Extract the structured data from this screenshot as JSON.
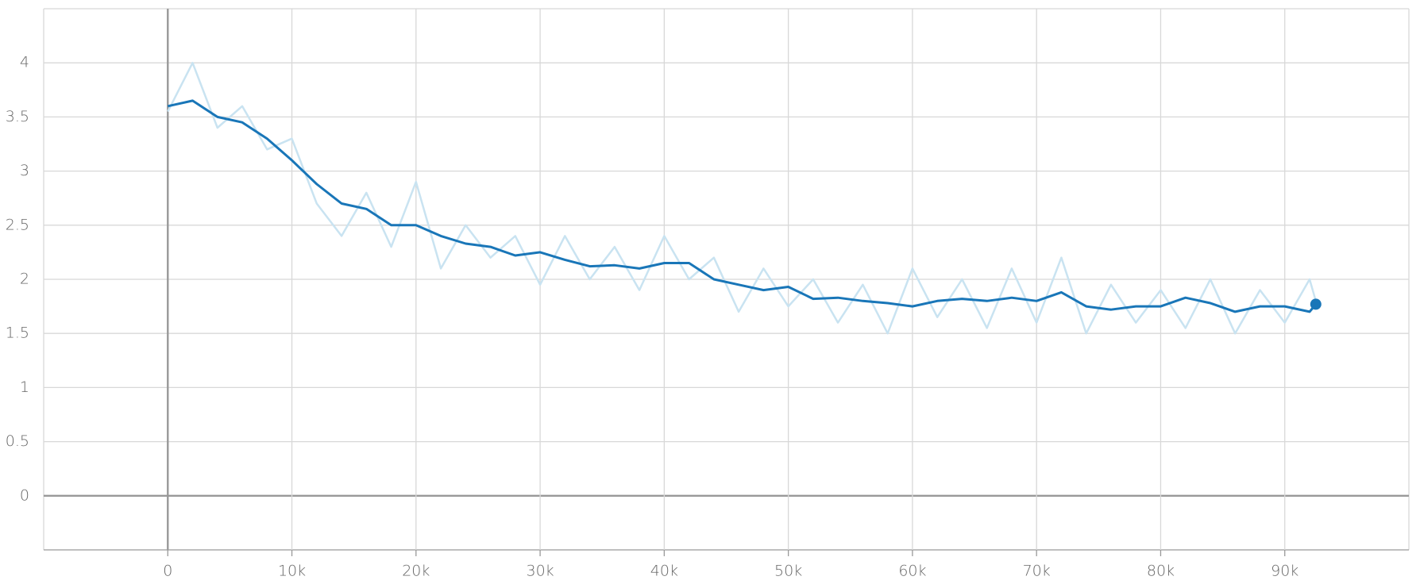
{
  "chart_data": {
    "type": "line",
    "x": [
      0,
      2000,
      4000,
      6000,
      8000,
      10000,
      12000,
      14000,
      16000,
      18000,
      20000,
      22000,
      24000,
      26000,
      28000,
      30000,
      32000,
      34000,
      36000,
      38000,
      40000,
      42000,
      44000,
      46000,
      48000,
      50000,
      52000,
      54000,
      56000,
      58000,
      60000,
      62000,
      64000,
      66000,
      68000,
      70000,
      72000,
      74000,
      76000,
      78000,
      80000,
      82000,
      84000,
      86000,
      88000,
      90000,
      92000,
      92500
    ],
    "series": [
      {
        "color": "#c9e3f1",
        "values": [
          3.55,
          4.0,
          3.4,
          3.6,
          3.2,
          3.3,
          2.7,
          2.4,
          2.8,
          2.3,
          2.9,
          2.1,
          2.5,
          2.2,
          2.4,
          1.95,
          2.4,
          2.0,
          2.3,
          1.9,
          2.4,
          2.0,
          2.2,
          1.7,
          2.1,
          1.75,
          2.0,
          1.6,
          1.95,
          1.5,
          2.1,
          1.65,
          2.0,
          1.55,
          2.1,
          1.6,
          2.2,
          1.5,
          1.95,
          1.6,
          1.9,
          1.55,
          2.0,
          1.5,
          1.9,
          1.6,
          2.0,
          1.8
        ]
      },
      {
        "color": "#1976b8",
        "values": [
          3.6,
          3.65,
          3.5,
          3.45,
          3.3,
          3.1,
          2.88,
          2.7,
          2.65,
          2.5,
          2.5,
          2.4,
          2.33,
          2.3,
          2.22,
          2.25,
          2.18,
          2.12,
          2.13,
          2.1,
          2.15,
          2.15,
          2.0,
          1.95,
          1.9,
          1.93,
          1.82,
          1.83,
          1.8,
          1.78,
          1.75,
          1.8,
          1.82,
          1.8,
          1.83,
          1.8,
          1.88,
          1.75,
          1.72,
          1.75,
          1.75,
          1.83,
          1.78,
          1.7,
          1.75,
          1.75,
          1.7,
          1.77
        ]
      }
    ],
    "xlim": [
      -10000,
      100000
    ],
    "ylim": [
      -0.5,
      4.5
    ],
    "xticks": [
      0,
      {
        "value": 10000,
        "label": "10k"
      },
      {
        "value": 20000,
        "label": "20k"
      },
      {
        "value": 30000,
        "label": "30k"
      },
      {
        "value": 40000,
        "label": "40k"
      },
      {
        "value": 50000,
        "label": "50k"
      },
      {
        "value": 60000,
        "label": "60k"
      },
      {
        "value": 70000,
        "label": "70k"
      },
      {
        "value": 80000,
        "label": "80k"
      },
      {
        "value": 90000,
        "label": "90k"
      }
    ],
    "yticks": [
      0,
      0.5,
      1,
      1.5,
      2,
      2.5,
      3,
      3.5,
      4
    ],
    "grid": true
  }
}
